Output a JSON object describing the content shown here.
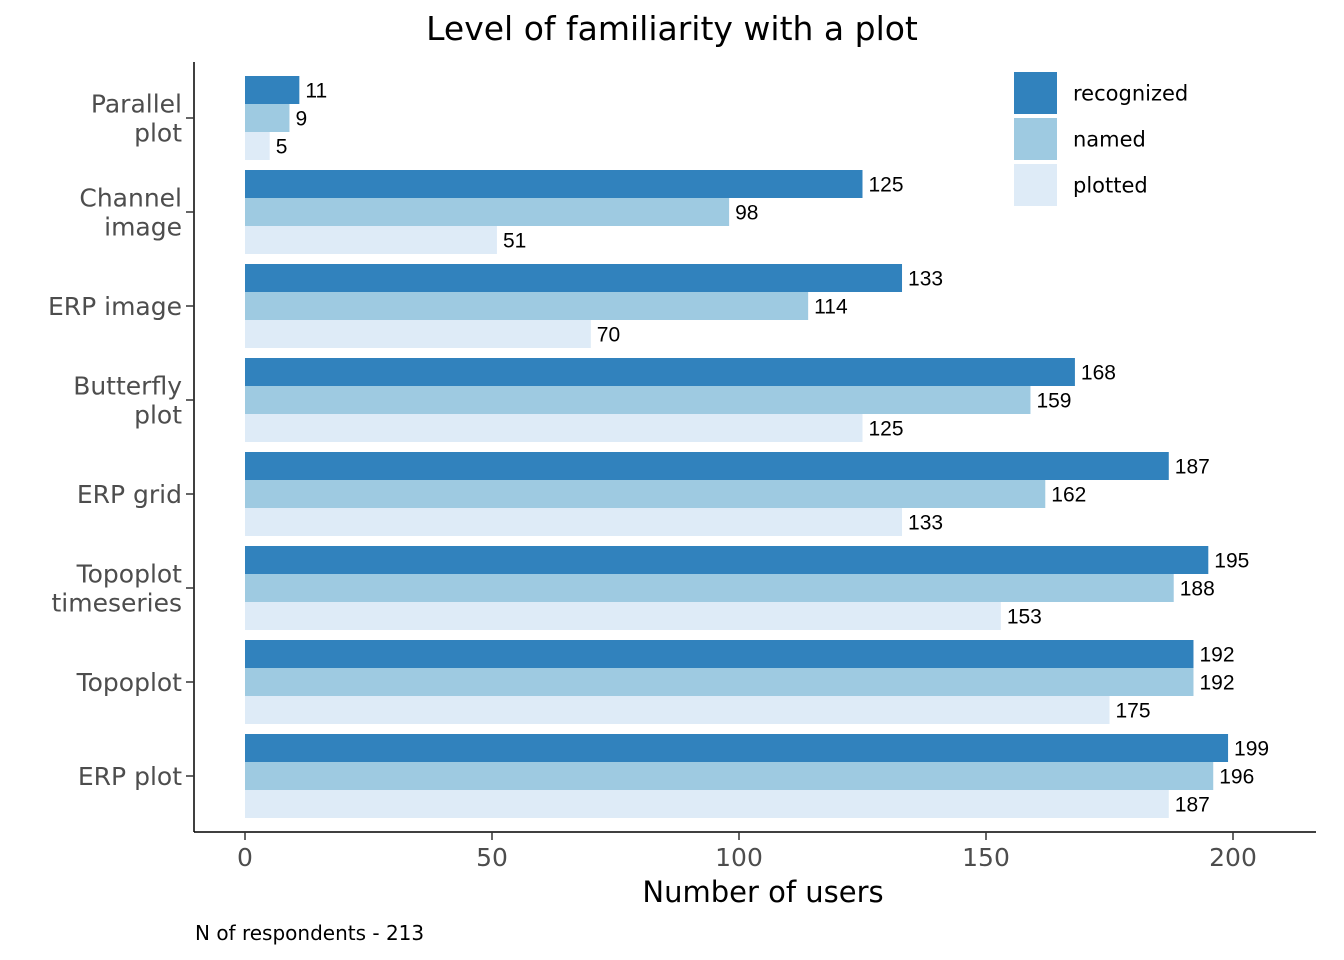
{
  "chart_data": {
    "type": "bar",
    "orientation": "horizontal",
    "title": "Level of familiarity with a plot",
    "xlabel": "Number of users",
    "ylabel": "",
    "caption": "N of respondents - 213",
    "xlim": [
      0,
      210
    ],
    "xticks": [
      "0",
      "50",
      "100",
      "150",
      "200"
    ],
    "categories": [
      "Parallel\nplot",
      "Channel\nimage",
      "ERP image",
      "Butterfly\nplot",
      "ERP grid",
      "Topoplot\ntimeseries",
      "Topoplot",
      "ERP plot"
    ],
    "series": [
      {
        "name": "recognized",
        "color": "#3182bd",
        "values": [
          11,
          125,
          133,
          168,
          187,
          195,
          192,
          199
        ]
      },
      {
        "name": "named",
        "color": "#9ecae1",
        "values": [
          9,
          98,
          114,
          159,
          162,
          188,
          192,
          196
        ]
      },
      {
        "name": "plotted",
        "color": "#deebf7",
        "values": [
          5,
          51,
          70,
          125,
          133,
          153,
          175,
          187
        ]
      }
    ],
    "legend": "top-right",
    "grid": false
  }
}
